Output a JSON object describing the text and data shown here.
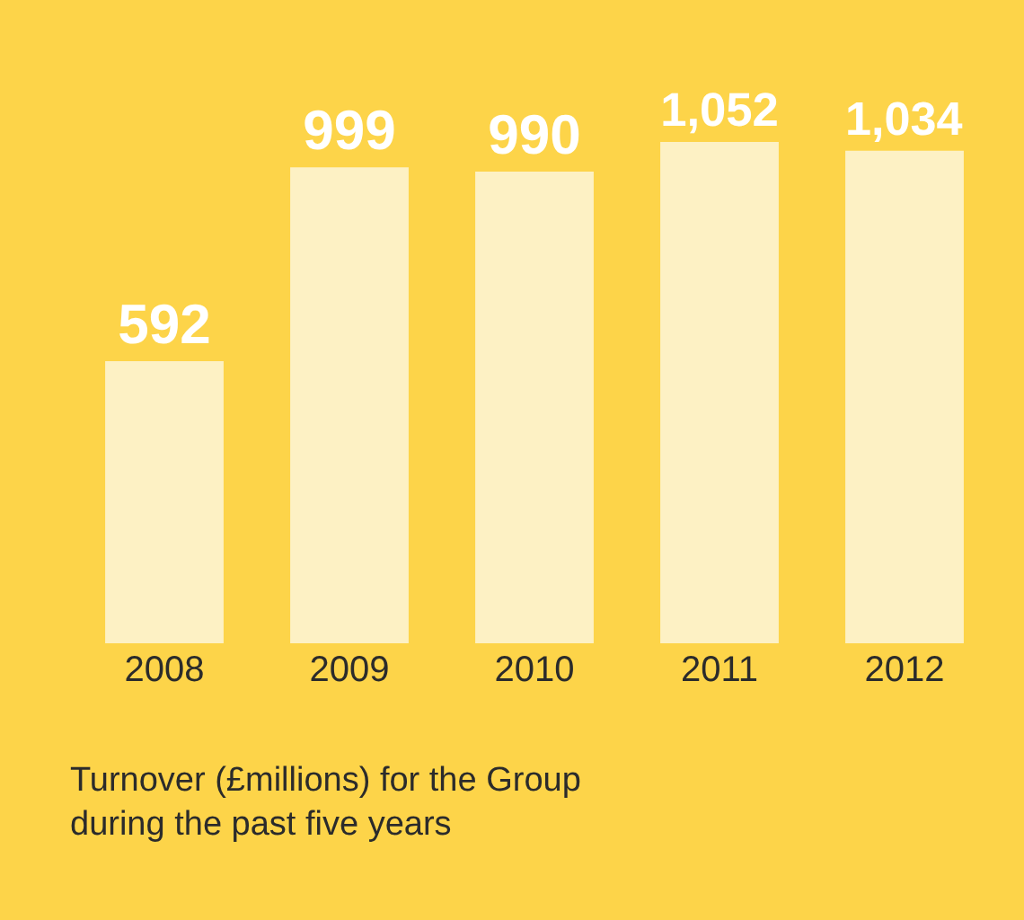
{
  "chart_data": {
    "type": "bar",
    "categories": [
      "2008",
      "2009",
      "2010",
      "2011",
      "2012"
    ],
    "values": [
      592,
      999,
      990,
      1052,
      1034
    ],
    "color": "#fdf1c4",
    "value_labels": [
      "592",
      "999",
      "990",
      "1,052",
      "1,034"
    ],
    "tick_labels": "x",
    "annotations": [
      "Turnover (£millions) for the Group\nduring the past five years"
    ]
  }
}
